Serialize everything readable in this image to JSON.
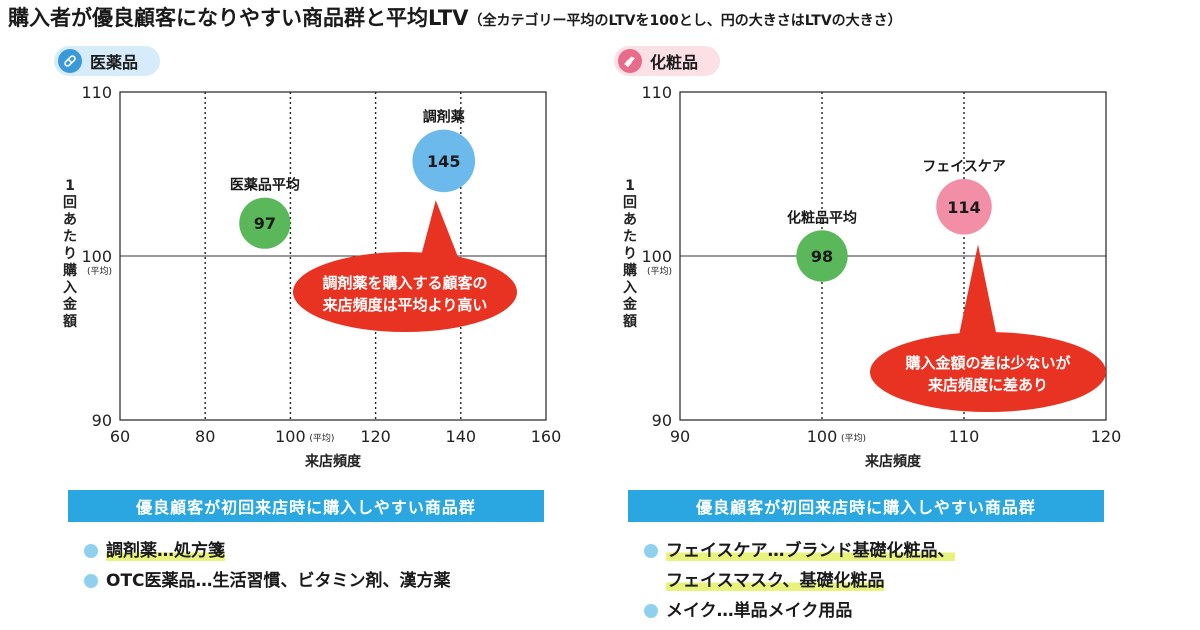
{
  "title": {
    "main": "購入者が優良顧客になりやすい商品群と平均LTV",
    "sub": "（全カテゴリー平均のLTVを100とし、円の大きさはLTVの大きさ）"
  },
  "colors": {
    "blue": "#6cbaeb",
    "green": "#5bb85a",
    "pink": "#f28fa6",
    "red": "#e83323",
    "banner": "#2aa7e1"
  },
  "left_panel": {
    "category": "医薬品",
    "icon": "capsule-icon",
    "banner": "優良顧客が初回来店時に購入しやすい商品群",
    "items": [
      {
        "text": "調剤薬…処方箋",
        "highlight": true
      },
      {
        "text": "OTC医薬品…生活習慣、ビタミン剤、漢方薬",
        "highlight": false
      }
    ]
  },
  "right_panel": {
    "category": "化粧品",
    "icon": "lipstick-icon",
    "banner": "優良顧客が初回来店時に購入しやすい商品群",
    "items": [
      {
        "text": "フェイスケア…ブランド基礎化粧品、",
        "highlight": true
      },
      {
        "text": "フェイスマスク、基礎化粧品",
        "highlight": true,
        "continuation": true
      },
      {
        "text": "メイク…単品メイク用品",
        "highlight": false
      }
    ]
  },
  "chart_data": [
    {
      "type": "scatter",
      "title": "医薬品",
      "xlabel": "来店頻度",
      "ylabel": "1回あたり購入金額",
      "xlim": [
        60,
        160
      ],
      "ylim": [
        90,
        110
      ],
      "xticks": [
        60,
        80,
        100,
        120,
        140,
        160
      ],
      "yticks": [
        90,
        100,
        110
      ],
      "avg_label": "(平均)",
      "x_avg": 100,
      "y_avg": 100,
      "dotted_x": [
        80,
        100,
        120,
        140
      ],
      "points": [
        {
          "name": "医薬品平均",
          "x": 94,
          "y": 102,
          "ltv": 97,
          "color": "#5bb85a"
        },
        {
          "name": "調剤薬",
          "x": 136,
          "y": 105.8,
          "ltv": 145,
          "color": "#6cbaeb"
        }
      ],
      "callout": {
        "lines": [
          "調剤薬を購入する顧客の",
          "来店頻度は平均より高い"
        ]
      }
    },
    {
      "type": "scatter",
      "title": "化粧品",
      "xlabel": "来店頻度",
      "ylabel": "1回あたり購入金額",
      "xlim": [
        90,
        120
      ],
      "ylim": [
        90,
        110
      ],
      "xticks": [
        90,
        100,
        110,
        120
      ],
      "yticks": [
        90,
        100,
        110
      ],
      "avg_label": "(平均)",
      "x_avg": 100,
      "y_avg": 100,
      "dotted_x": [
        100,
        110
      ],
      "points": [
        {
          "name": "化粧品平均",
          "x": 100,
          "y": 100,
          "ltv": 98,
          "color": "#5bb85a"
        },
        {
          "name": "フェイスケア",
          "x": 110,
          "y": 103,
          "ltv": 114,
          "color": "#f28fa6"
        }
      ],
      "callout": {
        "lines": [
          "購入金額の差は少ないが",
          "来店頻度に差あり"
        ]
      }
    }
  ]
}
